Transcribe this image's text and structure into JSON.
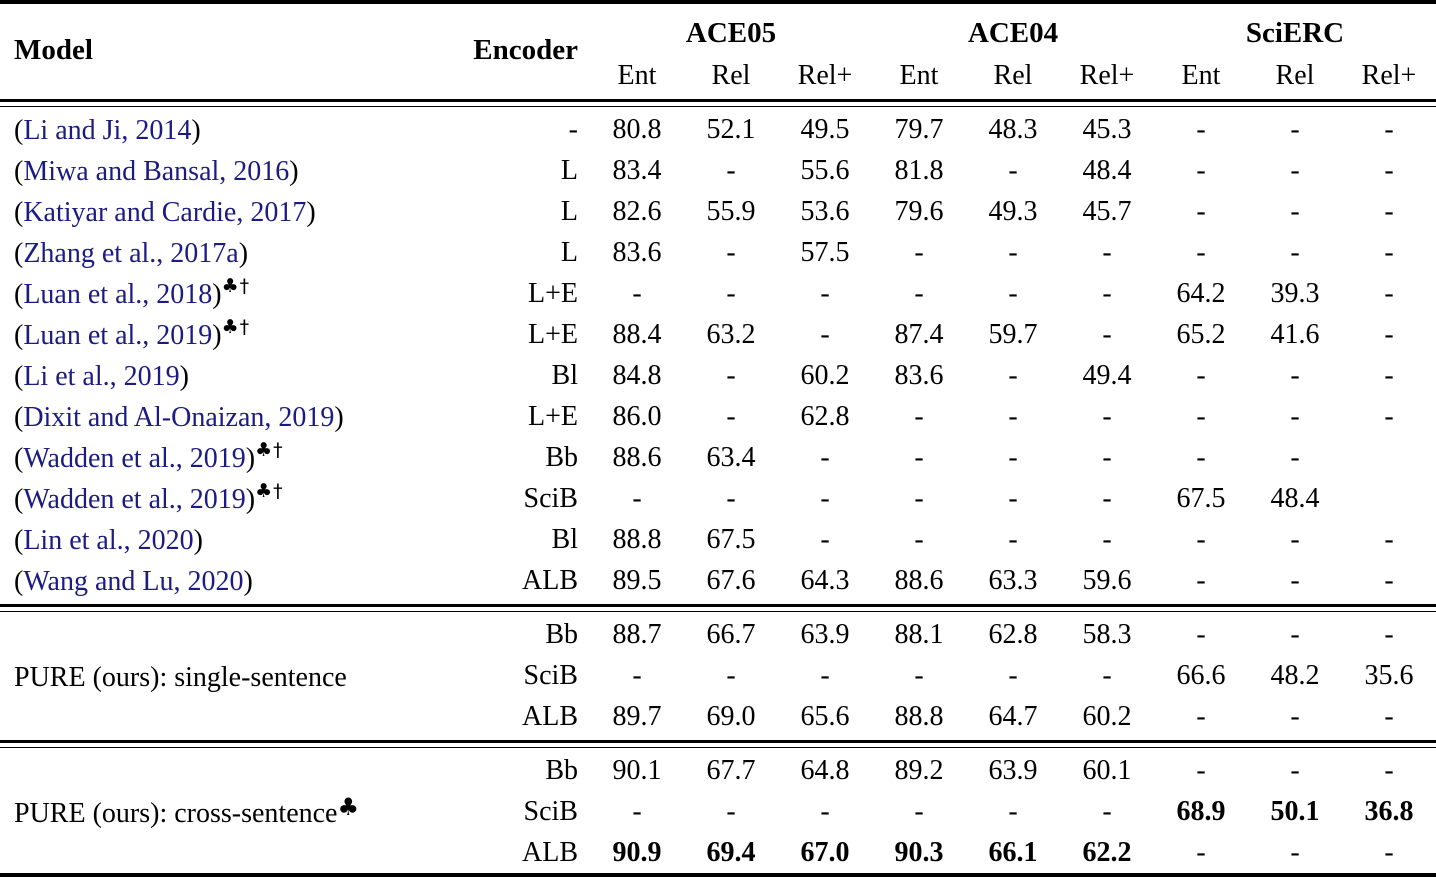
{
  "colors": {
    "citation_link": "#1b1b82",
    "text": "#000000",
    "rule": "#000000"
  },
  "citation_format": {
    "open": "(",
    "close": ")"
  },
  "table": {
    "header": {
      "model": "Model",
      "encoder": "Encoder",
      "groups": [
        {
          "label": "ACE05",
          "subcols": [
            "Ent",
            "Rel",
            "Rel+"
          ]
        },
        {
          "label": "ACE04",
          "subcols": [
            "Ent",
            "Rel",
            "Rel+"
          ]
        },
        {
          "label": "SciERC",
          "subcols": [
            "Ent",
            "Rel",
            "Rel+"
          ]
        }
      ]
    },
    "sections": [
      {
        "name": "baselines",
        "label": "",
        "label_mark": "",
        "rows": [
          {
            "cite": "Li and Ji, 2014",
            "marks": "",
            "encoder": "-",
            "values": [
              "80.8",
              "52.1",
              "49.5",
              "79.7",
              "48.3",
              "45.3",
              "-",
              "-",
              "-"
            ],
            "bold": []
          },
          {
            "cite": "Miwa and Bansal, 2016",
            "marks": "",
            "encoder": "L",
            "values": [
              "83.4",
              "-",
              "55.6",
              "81.8",
              "-",
              "48.4",
              "-",
              "-",
              "-"
            ],
            "bold": []
          },
          {
            "cite": "Katiyar and Cardie, 2017",
            "marks": "",
            "encoder": "L",
            "values": [
              "82.6",
              "55.9",
              "53.6",
              "79.6",
              "49.3",
              "45.7",
              "-",
              "-",
              "-"
            ],
            "bold": []
          },
          {
            "cite": "Zhang et al., 2017a",
            "marks": "",
            "encoder": "L",
            "values": [
              "83.6",
              "-",
              "57.5",
              "-",
              "-",
              "-",
              "-",
              "-",
              "-"
            ],
            "bold": []
          },
          {
            "cite": "Luan et al., 2018",
            "marks": "♣†",
            "encoder": "L+E",
            "values": [
              "-",
              "-",
              "-",
              "-",
              "-",
              "-",
              "64.2",
              "39.3",
              "-"
            ],
            "bold": []
          },
          {
            "cite": "Luan et al., 2019",
            "marks": "♣†",
            "encoder": "L+E",
            "values": [
              "88.4",
              "63.2",
              "-",
              "87.4",
              "59.7",
              "-",
              "65.2",
              "41.6",
              "-"
            ],
            "bold": []
          },
          {
            "cite": "Li et al., 2019",
            "marks": "",
            "encoder": "Bl",
            "values": [
              "84.8",
              "-",
              "60.2",
              "83.6",
              "-",
              "49.4",
              "-",
              "-",
              "-"
            ],
            "bold": []
          },
          {
            "cite": "Dixit and Al-Onaizan, 2019",
            "marks": "",
            "encoder": "L+E",
            "values": [
              "86.0",
              "-",
              "62.8",
              "-",
              "-",
              "-",
              "-",
              "-",
              "-"
            ],
            "bold": []
          },
          {
            "cite": "Wadden et al., 2019",
            "marks": "♣†",
            "encoder": "Bb",
            "values": [
              "88.6",
              "63.4",
              "-",
              "-",
              "-",
              "-",
              "-",
              "-",
              ""
            ],
            "bold": []
          },
          {
            "cite": "Wadden et al., 2019",
            "marks": "♣†",
            "encoder": "SciB",
            "values": [
              "-",
              "-",
              "-",
              "-",
              "-",
              "-",
              "67.5",
              "48.4",
              ""
            ],
            "bold": []
          },
          {
            "cite": "Lin et al., 2020",
            "marks": "",
            "encoder": "Bl",
            "values": [
              "88.8",
              "67.5",
              "-",
              "-",
              "-",
              "-",
              "-",
              "-",
              "-"
            ],
            "bold": []
          },
          {
            "cite": "Wang and Lu, 2020",
            "marks": "",
            "encoder": "ALB",
            "values": [
              "89.5",
              "67.6",
              "64.3",
              "88.6",
              "63.3",
              "59.6",
              "-",
              "-",
              "-"
            ],
            "bold": []
          }
        ]
      },
      {
        "name": "pure-single-sentence",
        "label": "PURE (ours): single-sentence",
        "label_mark": "",
        "rows": [
          {
            "encoder": "Bb",
            "values": [
              "88.7",
              "66.7",
              "63.9",
              "88.1",
              "62.8",
              "58.3",
              "-",
              "-",
              "-"
            ],
            "bold": []
          },
          {
            "encoder": "SciB",
            "values": [
              "-",
              "-",
              "-",
              "-",
              "-",
              "-",
              "66.6",
              "48.2",
              "35.6"
            ],
            "bold": []
          },
          {
            "encoder": "ALB",
            "values": [
              "89.7",
              "69.0",
              "65.6",
              "88.8",
              "64.7",
              "60.2",
              "-",
              "-",
              "-"
            ],
            "bold": []
          }
        ]
      },
      {
        "name": "pure-cross-sentence",
        "label": "PURE (ours): cross-sentence",
        "label_mark": "♣",
        "rows": [
          {
            "encoder": "Bb",
            "values": [
              "90.1",
              "67.7",
              "64.8",
              "89.2",
              "63.9",
              "60.1",
              "-",
              "-",
              "-"
            ],
            "bold": []
          },
          {
            "encoder": "SciB",
            "values": [
              "-",
              "-",
              "-",
              "-",
              "-",
              "-",
              "68.9",
              "50.1",
              "36.8"
            ],
            "bold": [
              6,
              7,
              8
            ]
          },
          {
            "encoder": "ALB",
            "values": [
              "90.9",
              "69.4",
              "67.0",
              "90.3",
              "66.1",
              "62.2",
              "-",
              "-",
              "-"
            ],
            "bold": [
              0,
              1,
              2,
              3,
              4,
              5
            ]
          }
        ]
      }
    ]
  }
}
